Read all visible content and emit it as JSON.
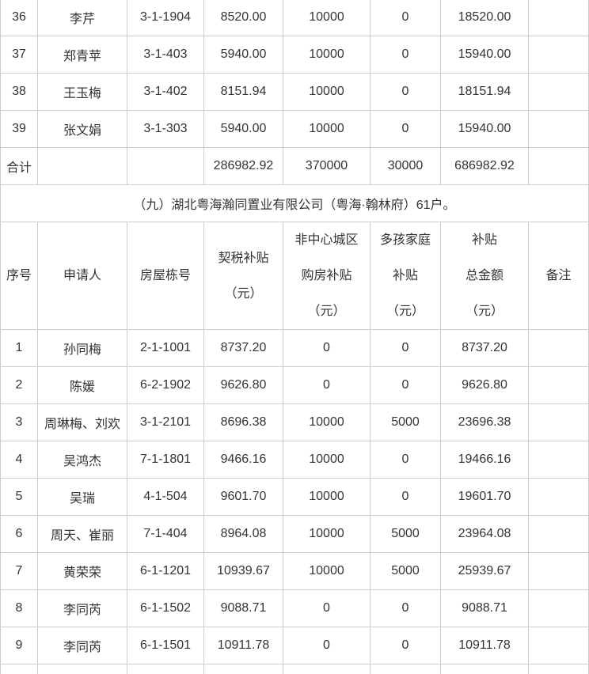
{
  "page": {
    "background": "#ffffff",
    "text_color": "#333333",
    "border_color": "#cccccc"
  },
  "section_title": "（九）湖北粤海瀚同置业有限公司（粤海·翰林府）61户。",
  "table": {
    "headers": {
      "index": "序号",
      "applicant": "申请人",
      "house_no": "房屋栋号",
      "deed_tax_lines": [
        "契税补贴",
        "（元）"
      ],
      "non_central_lines": [
        "非中心城区",
        "购房补贴",
        "（元）"
      ],
      "multi_child_lines": [
        "多孩家庭",
        "补贴",
        "（元）"
      ],
      "total_lines": [
        "补贴",
        "总金额",
        "（元）"
      ],
      "remarks": "备注"
    },
    "top_rows": [
      [
        "36",
        "李芹",
        "3-1-1904",
        "8520.00",
        "10000",
        "0",
        "18520.00",
        ""
      ],
      [
        "37",
        "郑青苹",
        "3-1-403",
        "5940.00",
        "10000",
        "0",
        "15940.00",
        ""
      ],
      [
        "38",
        "王玉梅",
        "3-1-402",
        "8151.94",
        "10000",
        "0",
        "18151.94",
        ""
      ],
      [
        "39",
        "张文娟",
        "3-1-303",
        "5940.00",
        "10000",
        "0",
        "15940.00",
        ""
      ]
    ],
    "total_row": {
      "label": "合计",
      "applicant": "",
      "house_no": "",
      "deed_tax": "286982.92",
      "non_central": "370000",
      "multi_child": "30000",
      "total": "686982.92",
      "remarks": ""
    },
    "bottom_rows": [
      [
        "1",
        "孙同梅",
        "2-1-1001",
        "8737.20",
        "0",
        "0",
        "8737.20",
        ""
      ],
      [
        "2",
        "陈媛",
        "6-2-1902",
        "9626.80",
        "0",
        "0",
        "9626.80",
        ""
      ],
      [
        "3",
        "周琳梅、刘欢",
        "3-1-2101",
        "8696.38",
        "10000",
        "5000",
        "23696.38",
        ""
      ],
      [
        "4",
        "吴鸿杰",
        "7-1-1801",
        "9466.16",
        "10000",
        "0",
        "19466.16",
        ""
      ],
      [
        "5",
        "吴瑞",
        "4-1-504",
        "9601.70",
        "10000",
        "0",
        "19601.70",
        ""
      ],
      [
        "6",
        "周天、崔丽",
        "7-1-404",
        "8964.08",
        "10000",
        "5000",
        "23964.08",
        ""
      ],
      [
        "7",
        "黄荣荣",
        "6-1-1201",
        "10939.67",
        "10000",
        "5000",
        "25939.67",
        ""
      ],
      [
        "8",
        "李同芮",
        "6-1-1502",
        "9088.71",
        "0",
        "0",
        "9088.71",
        ""
      ],
      [
        "9",
        "李同芮",
        "6-1-1501",
        "10911.78",
        "0",
        "0",
        "10911.78",
        ""
      ]
    ]
  }
}
